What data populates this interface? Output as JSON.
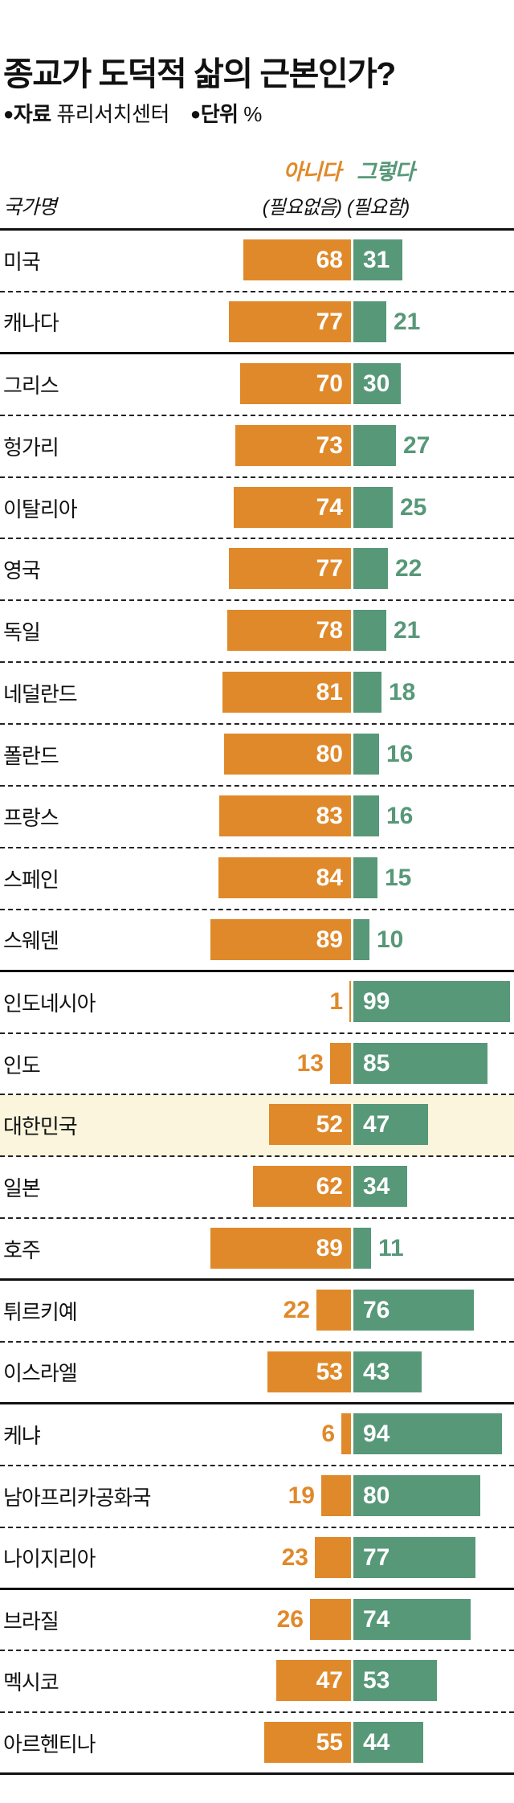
{
  "title": "종교가 도덕적 삶의 근본인가?",
  "source": {
    "label1": "자료",
    "value1": "퓨리서치센터",
    "label2": "단위",
    "value2": "%"
  },
  "header": {
    "country_col": "국가명",
    "legend_no": "아니다",
    "legend_no_sub": "(필요없음)",
    "legend_yes": "그렇다",
    "legend_yes_sub": "(필요함)"
  },
  "colors": {
    "no": "#E0892A",
    "yes": "#579878",
    "highlight_bg": "#FAF5DC",
    "text": "#111111",
    "value_inside": "#FFFFFF"
  },
  "chart_data": {
    "type": "bar",
    "orientation": "horizontal-diverging",
    "unit": "%",
    "title": "종교가 도덕적 삶의 근본인가?",
    "source": "퓨리서치센터",
    "series_names": [
      "아니다 (필요없음)",
      "그렇다 (필요함)"
    ],
    "value_range": [
      0,
      100
    ],
    "highlighted_country": "대한민국",
    "sections": [
      {
        "rows": [
          {
            "country": "미국",
            "no": 68,
            "yes": 31
          },
          {
            "country": "캐나다",
            "no": 77,
            "yes": 21
          }
        ]
      },
      {
        "rows": [
          {
            "country": "그리스",
            "no": 70,
            "yes": 30
          },
          {
            "country": "헝가리",
            "no": 73,
            "yes": 27
          },
          {
            "country": "이탈리아",
            "no": 74,
            "yes": 25
          },
          {
            "country": "영국",
            "no": 77,
            "yes": 22
          },
          {
            "country": "독일",
            "no": 78,
            "yes": 21
          },
          {
            "country": "네덜란드",
            "no": 81,
            "yes": 18
          },
          {
            "country": "폴란드",
            "no": 80,
            "yes": 16
          },
          {
            "country": "프랑스",
            "no": 83,
            "yes": 16
          },
          {
            "country": "스페인",
            "no": 84,
            "yes": 15
          },
          {
            "country": "스웨덴",
            "no": 89,
            "yes": 10
          }
        ]
      },
      {
        "rows": [
          {
            "country": "인도네시아",
            "no": 1,
            "yes": 99
          },
          {
            "country": "인도",
            "no": 13,
            "yes": 85
          },
          {
            "country": "대한민국",
            "no": 52,
            "yes": 47
          },
          {
            "country": "일본",
            "no": 62,
            "yes": 34
          },
          {
            "country": "호주",
            "no": 89,
            "yes": 11
          }
        ]
      },
      {
        "rows": [
          {
            "country": "튀르키예",
            "no": 22,
            "yes": 76
          },
          {
            "country": "이스라엘",
            "no": 53,
            "yes": 43
          }
        ]
      },
      {
        "rows": [
          {
            "country": "케냐",
            "no": 6,
            "yes": 94
          },
          {
            "country": "남아프리카공화국",
            "no": 19,
            "yes": 80
          },
          {
            "country": "나이지리아",
            "no": 23,
            "yes": 77
          }
        ]
      },
      {
        "rows": [
          {
            "country": "브라질",
            "no": 26,
            "yes": 74
          },
          {
            "country": "멕시코",
            "no": 47,
            "yes": 53
          },
          {
            "country": "아르헨티나",
            "no": 55,
            "yes": 44
          }
        ]
      }
    ]
  }
}
